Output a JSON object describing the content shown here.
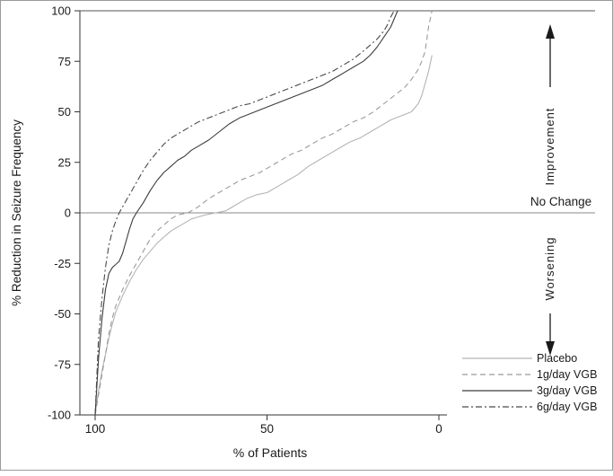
{
  "chart_data": {
    "type": "line",
    "title": "",
    "xlabel": "% of Patients",
    "ylabel": "% Reduction in Seizure Frequency",
    "xlim": [
      100,
      0
    ],
    "ylim": [
      -100,
      100
    ],
    "x_axis_reversed": true,
    "grid": false,
    "x_ticks": [
      100,
      50,
      0
    ],
    "y_ticks": [
      100,
      75,
      50,
      25,
      0,
      -25,
      -50,
      -75,
      -100
    ],
    "reference_lines": [
      {
        "y": 100,
        "label": ""
      },
      {
        "y": 0,
        "label": "No Change"
      }
    ],
    "annotations": {
      "no_change": "No Change",
      "improvement": "Improvement",
      "worsening": "Worsening"
    },
    "legend_position": "bottom-right",
    "series": [
      {
        "name": "Placebo",
        "line_style": "solid",
        "color": "#b4b4b4",
        "points": [
          [
            100,
            -100
          ],
          [
            99,
            -88
          ],
          [
            98,
            -78
          ],
          [
            97,
            -70
          ],
          [
            96,
            -62
          ],
          [
            95,
            -55
          ],
          [
            94,
            -49
          ],
          [
            92,
            -41
          ],
          [
            90,
            -34
          ],
          [
            88,
            -28
          ],
          [
            86,
            -23
          ],
          [
            84,
            -19
          ],
          [
            82,
            -15
          ],
          [
            80,
            -12
          ],
          [
            78,
            -9
          ],
          [
            76,
            -7
          ],
          [
            74,
            -5
          ],
          [
            72,
            -3
          ],
          [
            70,
            -2
          ],
          [
            68,
            -1
          ],
          [
            65,
            0
          ],
          [
            62,
            1
          ],
          [
            59,
            4
          ],
          [
            56,
            7
          ],
          [
            53,
            9
          ],
          [
            50,
            10
          ],
          [
            47,
            13
          ],
          [
            44,
            16
          ],
          [
            41,
            19
          ],
          [
            38,
            23
          ],
          [
            35,
            26
          ],
          [
            32,
            29
          ],
          [
            29,
            32
          ],
          [
            26,
            35
          ],
          [
            23,
            37
          ],
          [
            20,
            40
          ],
          [
            17,
            43
          ],
          [
            14,
            46
          ],
          [
            11,
            48
          ],
          [
            8,
            50
          ],
          [
            6,
            54
          ],
          [
            5,
            58
          ],
          [
            4,
            64
          ],
          [
            3,
            70
          ],
          [
            2,
            78
          ]
        ]
      },
      {
        "name": "1g/day VGB",
        "line_style": "dashed",
        "color": "#9a9a9a",
        "points": [
          [
            100,
            -100
          ],
          [
            99,
            -90
          ],
          [
            98,
            -80
          ],
          [
            97,
            -70
          ],
          [
            96,
            -60
          ],
          [
            95,
            -52
          ],
          [
            94,
            -46
          ],
          [
            92,
            -38
          ],
          [
            90,
            -31
          ],
          [
            88,
            -25
          ],
          [
            86,
            -19
          ],
          [
            84,
            -13
          ],
          [
            82,
            -9
          ],
          [
            80,
            -6
          ],
          [
            78,
            -3
          ],
          [
            76,
            -1
          ],
          [
            73,
            0
          ],
          [
            70,
            3
          ],
          [
            67,
            7
          ],
          [
            64,
            10
          ],
          [
            61,
            13
          ],
          [
            58,
            16
          ],
          [
            55,
            18
          ],
          [
            52,
            20
          ],
          [
            49,
            23
          ],
          [
            46,
            26
          ],
          [
            43,
            29
          ],
          [
            40,
            31
          ],
          [
            37,
            34
          ],
          [
            34,
            37
          ],
          [
            31,
            39
          ],
          [
            28,
            42
          ],
          [
            25,
            45
          ],
          [
            22,
            47
          ],
          [
            19,
            50
          ],
          [
            16,
            54
          ],
          [
            13,
            58
          ],
          [
            10,
            62
          ],
          [
            8,
            66
          ],
          [
            6,
            71
          ],
          [
            5,
            75
          ],
          [
            4,
            80
          ],
          [
            3,
            92
          ],
          [
            2,
            100
          ]
        ]
      },
      {
        "name": "3g/day VGB",
        "line_style": "solid",
        "color": "#3c3c3c",
        "points": [
          [
            100,
            -100
          ],
          [
            99,
            -72
          ],
          [
            98,
            -52
          ],
          [
            97,
            -38
          ],
          [
            96,
            -30
          ],
          [
            95,
            -27
          ],
          [
            93,
            -24
          ],
          [
            92,
            -20
          ],
          [
            91,
            -14
          ],
          [
            90,
            -8
          ],
          [
            89,
            -3
          ],
          [
            88,
            0
          ],
          [
            86,
            5
          ],
          [
            84,
            11
          ],
          [
            82,
            16
          ],
          [
            80,
            20
          ],
          [
            78,
            23
          ],
          [
            76,
            26
          ],
          [
            74,
            28
          ],
          [
            72,
            31
          ],
          [
            70,
            33
          ],
          [
            67,
            36
          ],
          [
            64,
            40
          ],
          [
            61,
            44
          ],
          [
            58,
            47
          ],
          [
            55,
            49
          ],
          [
            52,
            51
          ],
          [
            49,
            53
          ],
          [
            46,
            55
          ],
          [
            43,
            57
          ],
          [
            40,
            59
          ],
          [
            37,
            61
          ],
          [
            34,
            63
          ],
          [
            31,
            66
          ],
          [
            28,
            69
          ],
          [
            25,
            72
          ],
          [
            22,
            75
          ],
          [
            20,
            78
          ],
          [
            18,
            82
          ],
          [
            16,
            87
          ],
          [
            14,
            92
          ],
          [
            13,
            96
          ],
          [
            12,
            100
          ]
        ]
      },
      {
        "name": "6g/day VGB",
        "line_style": "dash-dot",
        "color": "#4a4a4a",
        "points": [
          [
            100,
            -100
          ],
          [
            99,
            -62
          ],
          [
            98,
            -42
          ],
          [
            97,
            -27
          ],
          [
            96,
            -16
          ],
          [
            95,
            -9
          ],
          [
            94,
            -4
          ],
          [
            93,
            0
          ],
          [
            92,
            3
          ],
          [
            90,
            9
          ],
          [
            88,
            15
          ],
          [
            86,
            21
          ],
          [
            84,
            26
          ],
          [
            82,
            30
          ],
          [
            80,
            34
          ],
          [
            78,
            37
          ],
          [
            76,
            39
          ],
          [
            74,
            41
          ],
          [
            72,
            43
          ],
          [
            70,
            45
          ],
          [
            67,
            47
          ],
          [
            64,
            49
          ],
          [
            61,
            51
          ],
          [
            58,
            53
          ],
          [
            55,
            54
          ],
          [
            52,
            56
          ],
          [
            49,
            58
          ],
          [
            46,
            60
          ],
          [
            43,
            62
          ],
          [
            40,
            64
          ],
          [
            37,
            66
          ],
          [
            34,
            68
          ],
          [
            31,
            70
          ],
          [
            28,
            73
          ],
          [
            25,
            76
          ],
          [
            22,
            80
          ],
          [
            20,
            83
          ],
          [
            18,
            86
          ],
          [
            16,
            90
          ],
          [
            15,
            93
          ],
          [
            14,
            97
          ],
          [
            13,
            100
          ]
        ]
      }
    ],
    "style": {
      "axis_color": "#333333",
      "no_change_line_color": "#8a8a8a",
      "top_line_color": "#555555",
      "background": "#ffffff"
    }
  }
}
